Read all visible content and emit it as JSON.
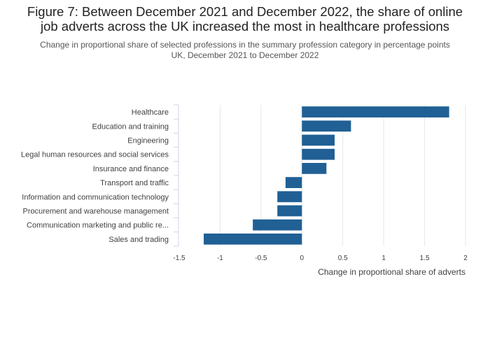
{
  "header": {
    "title_line1": "Figure 7: Between December 2021 and December 2022, the share of online",
    "title_line2": "job adverts across the UK increased the most in healthcare professions",
    "subtitle_line1": "Change in proportional share of selected professions in the summary profession category in percentage points",
    "subtitle_line2": "UK, December 2021 to December 2022"
  },
  "chart_data": {
    "type": "bar",
    "orientation": "horizontal",
    "categories": [
      "Healthcare",
      "Education and training",
      "Engineering",
      "Legal human resources and social services",
      "Insurance and finance",
      "Transport and traffic",
      "Information and communication technology",
      "Procurement and warehouse management",
      "Communication marketing and public re...",
      "Sales and trading"
    ],
    "values": [
      1.8,
      0.6,
      0.4,
      0.4,
      0.3,
      -0.2,
      -0.3,
      -0.3,
      -0.6,
      -1.2
    ],
    "xlabel": "Change in proportional share of adverts",
    "ylabel": "",
    "xlim": [
      -1.5,
      2
    ],
    "xticks": [
      -1.5,
      -1,
      -0.5,
      0,
      0.5,
      1,
      1.5,
      2
    ],
    "xtick_labels": [
      "-1.5",
      "-1",
      "-0.5",
      "0",
      "0.5",
      "1",
      "1.5",
      "2"
    ],
    "grid": true,
    "bar_color": "#206095",
    "grid_color": "#e6e6e6",
    "axis_color": "#d0d6e0"
  }
}
